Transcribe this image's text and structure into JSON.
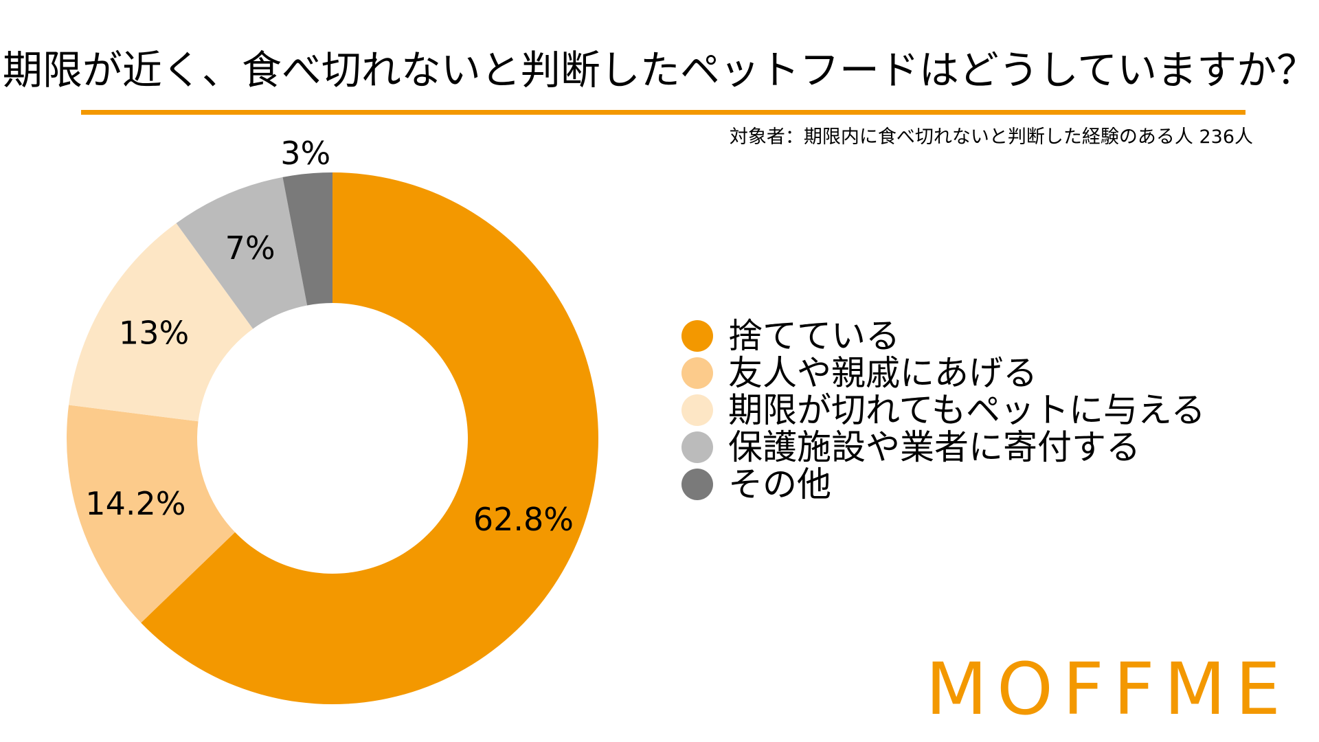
{
  "title": "期限が近く、食べ切れないと判断したペットフードはどうしていますか？",
  "subtitle": "対象者：期限内に食べ切れないと判断した経験のある人 236人",
  "brand": {
    "logo_text": "MOFFME",
    "accent_color": "#F39800"
  },
  "chart_data": {
    "type": "pie",
    "style": "donut",
    "title": "期限が近く、食べ切れないと判断したペットフードはどうしていますか？",
    "subtitle": "対象者：期限内に食べ切れないと判断した経験のある人 236人",
    "legend_position": "right",
    "categories": [
      "捨てている",
      "友人や親戚にあげる",
      "期限が切れてもペットに与える",
      "保護施設や業者に寄付する",
      "その他"
    ],
    "values": [
      62.8,
      14.2,
      13,
      7,
      3
    ],
    "value_labels": [
      "62.8%",
      "14.2%",
      "13%",
      "7%",
      "3%"
    ],
    "colors": [
      "#F39800",
      "#FCCB8B",
      "#FDE6C5",
      "#BBBBBB",
      "#7A7A7A"
    ]
  }
}
